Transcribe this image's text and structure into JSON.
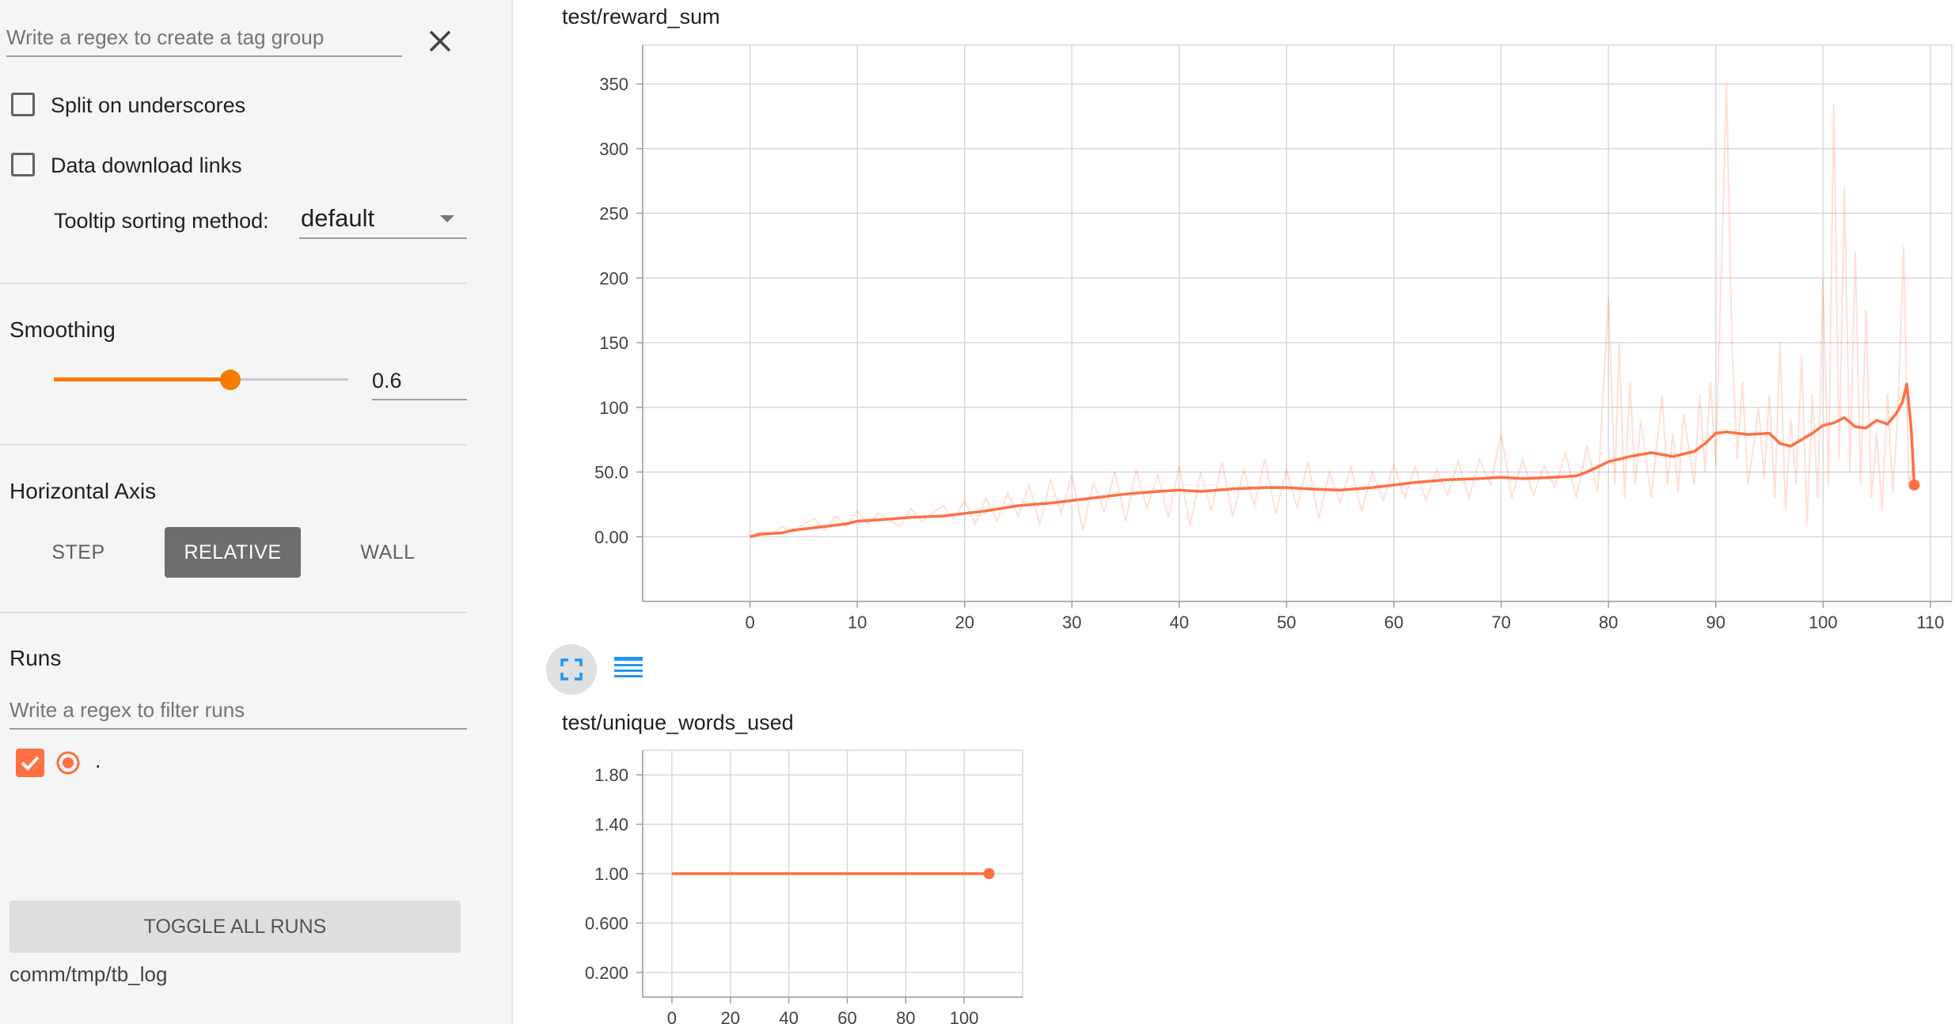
{
  "sidebar": {
    "tag_group_placeholder": "Write a regex to create a tag group",
    "split_underscores_label": "Split on underscores",
    "data_download_label": "Data download links",
    "tooltip_sorting_label": "Tooltip sorting method:",
    "tooltip_sorting_value": "default",
    "smoothing_title": "Smoothing",
    "smoothing_value": "0.6",
    "smoothing_fraction": 0.6,
    "horizontal_axis_title": "Horizontal Axis",
    "axis_options": [
      "STEP",
      "RELATIVE",
      "WALL"
    ],
    "axis_selected": "RELATIVE",
    "runs_title": "Runs",
    "runs_filter_placeholder": "Write a regex to filter runs",
    "run_name": ".",
    "toggle_all_label": "TOGGLE ALL RUNS",
    "log_dir": "comm/tmp/tb_log",
    "accent_color": "#f57c00",
    "run_color": "#ff7043"
  },
  "chart_data": [
    {
      "type": "line",
      "title": "test/reward_sum",
      "xlim": [
        -10,
        112
      ],
      "ylim": [
        -50,
        380
      ],
      "x_ticks": [
        "0",
        "10",
        "20",
        "30",
        "40",
        "50",
        "60",
        "70",
        "80",
        "90",
        "100",
        "110"
      ],
      "x_tick_values": [
        0,
        10,
        20,
        30,
        40,
        50,
        60,
        70,
        80,
        90,
        100,
        110
      ],
      "y_ticks": [
        "0.00",
        "50.0",
        "100",
        "150",
        "200",
        "250",
        "300",
        "350"
      ],
      "y_tick_values": [
        0,
        50,
        100,
        150,
        200,
        250,
        300,
        350
      ],
      "series": [
        {
          "smoothed": [
            [
              0,
              0
            ],
            [
              1,
              2
            ],
            [
              3,
              3
            ],
            [
              4,
              5
            ],
            [
              5,
              6
            ],
            [
              7,
              8
            ],
            [
              9,
              10
            ],
            [
              10,
              12
            ],
            [
              12,
              13
            ],
            [
              15,
              15
            ],
            [
              18,
              16
            ],
            [
              20,
              18
            ],
            [
              22,
              20
            ],
            [
              25,
              24
            ],
            [
              28,
              26
            ],
            [
              30,
              28
            ],
            [
              33,
              31
            ],
            [
              35,
              33
            ],
            [
              38,
              35
            ],
            [
              40,
              36
            ],
            [
              42,
              35
            ],
            [
              45,
              37
            ],
            [
              48,
              38
            ],
            [
              50,
              38
            ],
            [
              52,
              37
            ],
            [
              55,
              36
            ],
            [
              58,
              38
            ],
            [
              60,
              40
            ],
            [
              62,
              42
            ],
            [
              65,
              44
            ],
            [
              68,
              45
            ],
            [
              70,
              46
            ],
            [
              72,
              45
            ],
            [
              75,
              46
            ],
            [
              77,
              47
            ],
            [
              78,
              50
            ],
            [
              80,
              58
            ],
            [
              82,
              62
            ],
            [
              84,
              65
            ],
            [
              86,
              62
            ],
            [
              88,
              66
            ],
            [
              89,
              72
            ],
            [
              90,
              80
            ],
            [
              91,
              81
            ],
            [
              93,
              79
            ],
            [
              95,
              80
            ],
            [
              96,
              72
            ],
            [
              97,
              70
            ],
            [
              98,
              75
            ],
            [
              99,
              80
            ],
            [
              100,
              86
            ],
            [
              101,
              88
            ],
            [
              102,
              92
            ],
            [
              103,
              85
            ],
            [
              104,
              84
            ],
            [
              105,
              90
            ],
            [
              106,
              87
            ],
            [
              106.8,
              95
            ],
            [
              107.4,
              104
            ],
            [
              107.8,
              118
            ],
            [
              108.2,
              85
            ],
            [
              108.5,
              40
            ]
          ],
          "raw": [
            [
              0,
              0
            ],
            [
              1,
              4
            ],
            [
              2,
              2
            ],
            [
              3,
              8
            ],
            [
              4,
              3
            ],
            [
              5,
              10
            ],
            [
              6,
              14
            ],
            [
              7,
              5
            ],
            [
              8,
              16
            ],
            [
              9,
              8
            ],
            [
              10,
              20
            ],
            [
              11,
              10
            ],
            [
              12,
              18
            ],
            [
              14,
              8
            ],
            [
              15,
              22
            ],
            [
              16,
              12
            ],
            [
              18,
              24
            ],
            [
              19,
              14
            ],
            [
              20,
              28
            ],
            [
              21,
              10
            ],
            [
              22,
              30
            ],
            [
              23,
              12
            ],
            [
              24,
              34
            ],
            [
              25,
              16
            ],
            [
              26,
              40
            ],
            [
              27,
              10
            ],
            [
              28,
              44
            ],
            [
              29,
              18
            ],
            [
              30,
              48
            ],
            [
              31,
              5
            ],
            [
              32,
              42
            ],
            [
              33,
              20
            ],
            [
              34,
              50
            ],
            [
              35,
              12
            ],
            [
              36,
              52
            ],
            [
              37,
              22
            ],
            [
              38,
              48
            ],
            [
              39,
              15
            ],
            [
              40,
              55
            ],
            [
              41,
              8
            ],
            [
              42,
              50
            ],
            [
              43,
              20
            ],
            [
              44,
              58
            ],
            [
              45,
              15
            ],
            [
              46,
              52
            ],
            [
              47,
              24
            ],
            [
              48,
              60
            ],
            [
              49,
              18
            ],
            [
              50,
              52
            ],
            [
              51,
              22
            ],
            [
              52,
              58
            ],
            [
              53,
              14
            ],
            [
              54,
              50
            ],
            [
              55,
              26
            ],
            [
              56,
              54
            ],
            [
              57,
              20
            ],
            [
              58,
              50
            ],
            [
              59,
              28
            ],
            [
              60,
              56
            ],
            [
              61,
              30
            ],
            [
              62,
              54
            ],
            [
              63,
              28
            ],
            [
              64,
              52
            ],
            [
              65,
              32
            ],
            [
              66,
              58
            ],
            [
              67,
              30
            ],
            [
              68,
              60
            ],
            [
              69,
              40
            ],
            [
              70,
              80
            ],
            [
              71,
              30
            ],
            [
              72,
              60
            ],
            [
              73,
              32
            ],
            [
              74,
              55
            ],
            [
              75,
              38
            ],
            [
              76,
              65
            ],
            [
              77,
              30
            ],
            [
              78,
              70
            ],
            [
              79,
              35
            ],
            [
              80,
              185
            ],
            [
              80.6,
              40
            ],
            [
              81,
              150
            ],
            [
              81.5,
              30
            ],
            [
              82,
              120
            ],
            [
              82.5,
              40
            ],
            [
              83,
              90
            ],
            [
              84,
              30
            ],
            [
              85,
              110
            ],
            [
              85.5,
              40
            ],
            [
              86,
              80
            ],
            [
              86.5,
              35
            ],
            [
              87,
              95
            ],
            [
              88,
              40
            ],
            [
              88.5,
              110
            ],
            [
              89,
              50
            ],
            [
              89.5,
              120
            ],
            [
              90,
              55
            ],
            [
              90.5,
              200
            ],
            [
              91,
              350
            ],
            [
              91.5,
              150
            ],
            [
              92,
              60
            ],
            [
              92.5,
              120
            ],
            [
              93,
              40
            ],
            [
              94,
              100
            ],
            [
              94.5,
              45
            ],
            [
              95,
              110
            ],
            [
              95.5,
              30
            ],
            [
              96,
              150
            ],
            [
              96.5,
              20
            ],
            [
              97,
              90
            ],
            [
              97.5,
              40
            ],
            [
              98,
              140
            ],
            [
              98.5,
              10
            ],
            [
              99,
              110
            ],
            [
              99.5,
              30
            ],
            [
              100,
              200
            ],
            [
              100.5,
              40
            ],
            [
              101,
              335
            ],
            [
              101.5,
              60
            ],
            [
              102,
              270
            ],
            [
              102.5,
              50
            ],
            [
              103,
              220
            ],
            [
              103.5,
              40
            ],
            [
              104,
              175
            ],
            [
              104.5,
              30
            ],
            [
              105,
              80
            ],
            [
              105.5,
              20
            ],
            [
              106,
              110
            ],
            [
              106.5,
              35
            ],
            [
              107,
              100
            ],
            [
              107.5,
              225
            ],
            [
              108,
              40
            ],
            [
              108.5,
              60
            ]
          ],
          "final_point": [
            108.5,
            40
          ]
        }
      ]
    },
    {
      "type": "line",
      "title": "test/unique_words_used",
      "xlim": [
        -10,
        120
      ],
      "ylim": [
        0,
        2
      ],
      "x_ticks": [
        "0",
        "20",
        "40",
        "60",
        "80",
        "100"
      ],
      "x_tick_values": [
        0,
        20,
        40,
        60,
        80,
        100
      ],
      "y_ticks": [
        "0.200",
        "0.600",
        "1.00",
        "1.40",
        "1.80"
      ],
      "y_tick_values": [
        0.2,
        0.6,
        1.0,
        1.4,
        1.8
      ],
      "series": [
        {
          "smoothed": [
            [
              0,
              1.0
            ],
            [
              108.5,
              1.0
            ]
          ],
          "final_point": [
            108.5,
            1.0
          ]
        }
      ]
    }
  ]
}
